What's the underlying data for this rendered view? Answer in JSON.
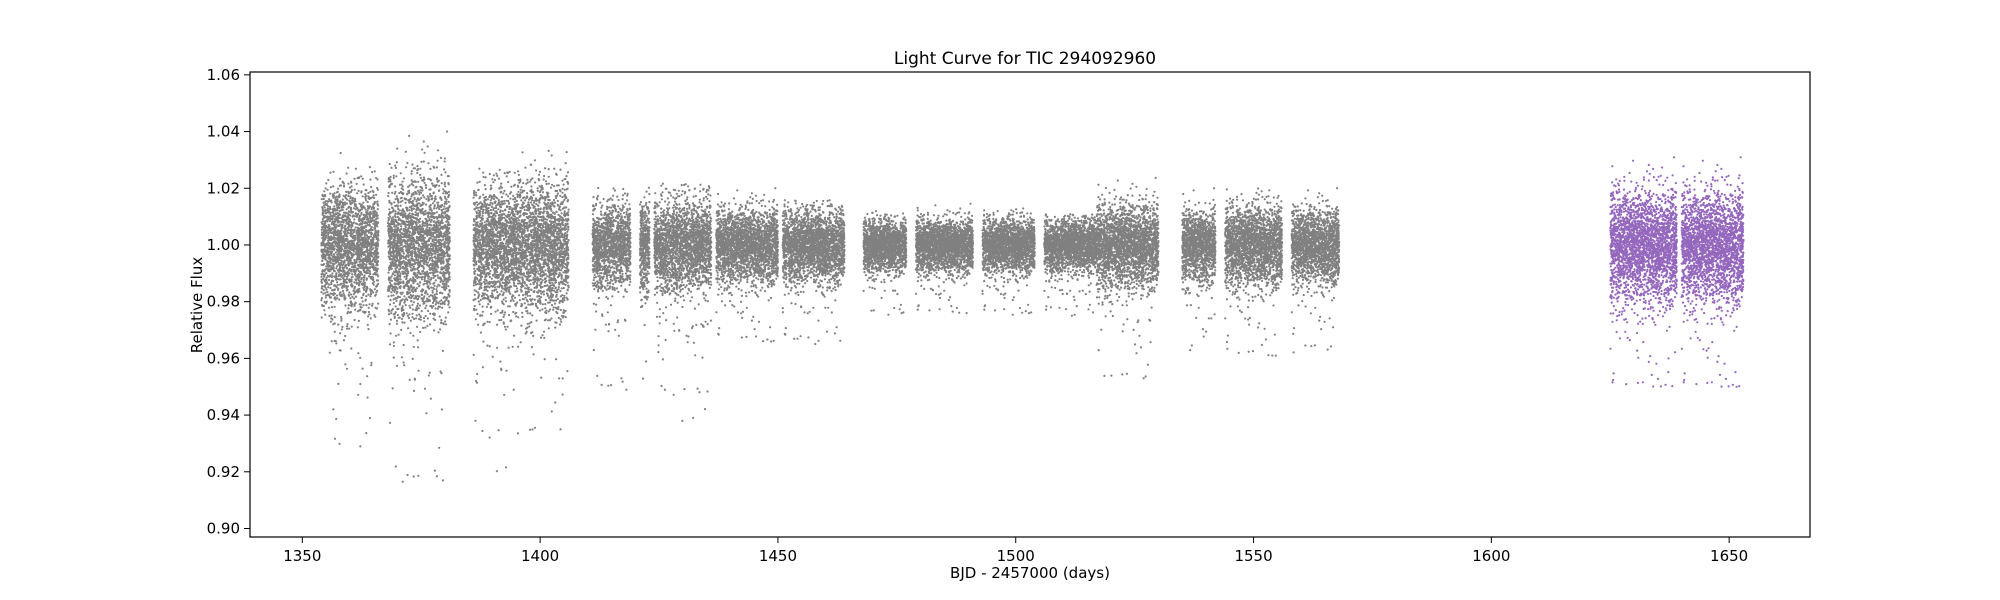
{
  "chart_data": {
    "type": "scatter",
    "title": "Light Curve for TIC 294092960",
    "xlabel": "BJD - 2457000 (days)",
    "ylabel": "Relative Flux",
    "xlim": [
      1339,
      1667
    ],
    "ylim": [
      0.897,
      1.061
    ],
    "xticks": [
      1350,
      1400,
      1450,
      1500,
      1550,
      1600,
      1650
    ],
    "yticks": [
      0.9,
      0.92,
      0.94,
      0.96,
      0.98,
      1.0,
      1.02,
      1.04,
      1.06
    ],
    "grid": false,
    "series": [
      {
        "color": "#808080",
        "segments": [
          {
            "x": [
              1354,
              1366
            ],
            "spread": 0.018,
            "min": 0.927,
            "max": 1.047
          },
          {
            "x": [
              1368,
              1381
            ],
            "spread": 0.022,
            "min": 0.916,
            "max": 1.053
          },
          {
            "x": [
              1386,
              1396
            ],
            "spread": 0.018,
            "min": 0.904,
            "max": 1.027
          },
          {
            "x": [
              1396,
              1406
            ],
            "spread": 0.02,
            "min": 0.933,
            "max": 1.035
          },
          {
            "x": [
              1411,
              1419
            ],
            "spread": 0.013,
            "min": 0.948,
            "max": 1.024
          },
          {
            "x": [
              1421,
              1423
            ],
            "spread": 0.014,
            "min": 0.95,
            "max": 1.036
          },
          {
            "x": [
              1424,
              1436
            ],
            "spread": 0.014,
            "min": 0.934,
            "max": 1.023
          },
          {
            "x": [
              1437,
              1450
            ],
            "spread": 0.011,
            "min": 0.965,
            "max": 1.021
          },
          {
            "x": [
              1451,
              1464
            ],
            "spread": 0.011,
            "min": 0.965,
            "max": 1.016
          },
          {
            "x": [
              1468,
              1477
            ],
            "spread": 0.008,
            "min": 0.975,
            "max": 1.012
          },
          {
            "x": [
              1479,
              1491
            ],
            "spread": 0.008,
            "min": 0.975,
            "max": 1.016
          },
          {
            "x": [
              1493,
              1504
            ],
            "spread": 0.008,
            "min": 0.975,
            "max": 1.013
          },
          {
            "x": [
              1506,
              1517
            ],
            "spread": 0.008,
            "min": 0.975,
            "max": 1.011
          },
          {
            "x": [
              1517,
              1530
            ],
            "spread": 0.013,
            "min": 0.952,
            "max": 1.028
          },
          {
            "x": [
              1535,
              1542
            ],
            "spread": 0.011,
            "min": 0.961,
            "max": 1.022
          },
          {
            "x": [
              1544,
              1556
            ],
            "spread": 0.012,
            "min": 0.96,
            "max": 1.03
          },
          {
            "x": [
              1558,
              1568
            ],
            "spread": 0.011,
            "min": 0.962,
            "max": 1.031
          }
        ]
      },
      {
        "color": "#9467bd",
        "segments": [
          {
            "x": [
              1625,
              1639
            ],
            "spread": 0.017,
            "min": 0.949,
            "max": 1.036
          },
          {
            "x": [
              1640,
              1653
            ],
            "spread": 0.017,
            "min": 0.949,
            "max": 1.036
          }
        ]
      }
    ]
  }
}
